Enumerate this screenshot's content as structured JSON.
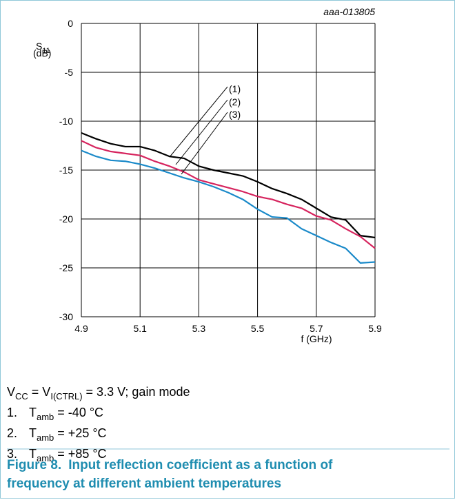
{
  "figure_id": "aaa-013805",
  "chart_data": {
    "type": "line",
    "y_label": {
      "symbol": "S",
      "sub": "11",
      "unit": "(dB)"
    },
    "x_label": "f (GHz)",
    "x": [
      4.9,
      4.95,
      5.0,
      5.05,
      5.1,
      5.15,
      5.2,
      5.25,
      5.3,
      5.35,
      5.4,
      5.45,
      5.5,
      5.55,
      5.6,
      5.65,
      5.7,
      5.75,
      5.8,
      5.85,
      5.9
    ],
    "series": [
      {
        "name": "(1)",
        "color": "#000000",
        "values": [
          -11.2,
          -11.8,
          -12.3,
          -12.6,
          -12.6,
          -13.0,
          -13.6,
          -13.8,
          -14.6,
          -15.0,
          -15.3,
          -15.6,
          -16.2,
          -16.9,
          -17.4,
          -18.0,
          -18.9,
          -19.8,
          -20.1,
          -21.7,
          -21.9
        ]
      },
      {
        "name": "(2)",
        "color": "#d6245e",
        "values": [
          -12.0,
          -12.7,
          -13.1,
          -13.3,
          -13.5,
          -14.1,
          -14.6,
          -15.2,
          -16.0,
          -16.4,
          -16.8,
          -17.2,
          -17.7,
          -18.0,
          -18.5,
          -18.9,
          -19.7,
          -20.1,
          -21.0,
          -21.8,
          -23.0
        ]
      },
      {
        "name": "(3)",
        "color": "#1b8ac9",
        "values": [
          -13.0,
          -13.6,
          -14.0,
          -14.1,
          -14.4,
          -14.8,
          -15.3,
          -15.8,
          -16.2,
          -16.7,
          -17.3,
          -18.0,
          -19.0,
          -19.8,
          -19.9,
          -21.0,
          -21.7,
          -22.4,
          -23.0,
          -24.5,
          -24.4
        ]
      }
    ],
    "xlim": [
      4.9,
      5.9
    ],
    "xticks": [
      4.9,
      5.1,
      5.3,
      5.5,
      5.7,
      5.9
    ],
    "ylim": [
      -30,
      0
    ],
    "yticks": [
      0,
      -5,
      -10,
      -15,
      -20,
      -25,
      -30
    ],
    "grid": true
  },
  "conditions": [
    "V",
    "CC",
    " = V",
    "I(CTRL)",
    " = 3.3 V; gain mode"
  ],
  "notes": [
    {
      "num": "1.",
      "symbol": "T",
      "sub": "amb",
      "text": " = -40 °C"
    },
    {
      "num": "2.",
      "symbol": "T",
      "sub": "amb",
      "text": " = +25 °C"
    },
    {
      "num": "3.",
      "symbol": "T",
      "sub": "amb",
      "text": " = +85 °C"
    }
  ],
  "caption": {
    "label": "Figure 8.",
    "line1": "Input reflection coefficient as a function of",
    "line2": "frequency at different ambient temperatures"
  }
}
